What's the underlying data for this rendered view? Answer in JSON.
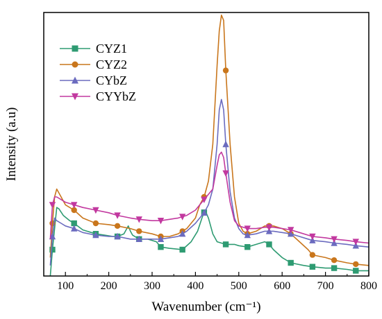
{
  "chart_data": {
    "type": "line",
    "title": "",
    "xlabel": "Wavenumber (cm⁻¹)",
    "ylabel": "Intensity (a.u)",
    "xlim": [
      50,
      800
    ],
    "ylim": [
      0,
      1
    ],
    "x_ticks": [
      100,
      200,
      300,
      400,
      500,
      600,
      700,
      800
    ],
    "y_ticks_shown": false,
    "grid": false,
    "legend_position": "top-left",
    "series": [
      {
        "name": "CYZ1",
        "color": "#2e9b72",
        "marker": "square",
        "x": [
          65,
          70,
          75,
          80,
          85,
          95,
          110,
          120,
          140,
          160,
          170,
          190,
          210,
          220,
          235,
          245,
          250,
          255,
          270,
          290,
          310,
          320,
          340,
          370,
          390,
          405,
          415,
          422,
          430,
          440,
          450,
          470,
          490,
          500,
          520,
          540,
          560,
          570,
          580,
          600,
          620,
          650,
          670,
          700,
          720,
          750,
          770,
          800
        ],
        "y": [
          0.0,
          0.1,
          0.18,
          0.26,
          0.255,
          0.23,
          0.21,
          0.2,
          0.175,
          0.165,
          0.16,
          0.155,
          0.15,
          0.15,
          0.16,
          0.19,
          0.17,
          0.155,
          0.14,
          0.14,
          0.13,
          0.11,
          0.105,
          0.1,
          0.13,
          0.17,
          0.22,
          0.25,
          0.22,
          0.16,
          0.13,
          0.12,
          0.12,
          0.115,
          0.11,
          0.12,
          0.13,
          0.12,
          0.1,
          0.07,
          0.05,
          0.04,
          0.035,
          0.03,
          0.03,
          0.025,
          0.02,
          0.02
        ]
      },
      {
        "name": "CYZ2",
        "color": "#c9761c",
        "marker": "circle",
        "x": [
          65,
          70,
          75,
          80,
          90,
          100,
          120,
          140,
          170,
          200,
          220,
          250,
          270,
          300,
          320,
          340,
          360,
          380,
          400,
          410,
          420,
          430,
          440,
          450,
          455,
          460,
          465,
          470,
          480,
          490,
          500,
          510,
          520,
          540,
          560,
          580,
          600,
          620,
          640,
          660,
          670,
          700,
          720,
          750,
          770,
          800
        ],
        "y": [
          0.07,
          0.2,
          0.3,
          0.33,
          0.3,
          0.27,
          0.25,
          0.22,
          0.2,
          0.195,
          0.19,
          0.18,
          0.17,
          0.16,
          0.15,
          0.15,
          0.16,
          0.18,
          0.22,
          0.27,
          0.3,
          0.36,
          0.5,
          0.8,
          0.93,
          0.99,
          0.97,
          0.78,
          0.5,
          0.3,
          0.2,
          0.17,
          0.16,
          0.17,
          0.19,
          0.19,
          0.18,
          0.16,
          0.13,
          0.1,
          0.08,
          0.07,
          0.06,
          0.05,
          0.045,
          0.04
        ]
      },
      {
        "name": "CYbZ",
        "color": "#6b6bbf",
        "marker": "triangle-up",
        "x": [
          65,
          70,
          75,
          80,
          90,
          100,
          120,
          140,
          170,
          200,
          220,
          250,
          270,
          300,
          320,
          340,
          360,
          380,
          400,
          410,
          420,
          430,
          440,
          450,
          455,
          460,
          465,
          470,
          480,
          490,
          500,
          510,
          520,
          540,
          560,
          580,
          600,
          620,
          640,
          660,
          670,
          700,
          720,
          750,
          770,
          800
        ],
        "y": [
          0.04,
          0.15,
          0.22,
          0.21,
          0.2,
          0.19,
          0.18,
          0.165,
          0.155,
          0.15,
          0.15,
          0.14,
          0.14,
          0.14,
          0.14,
          0.145,
          0.15,
          0.17,
          0.2,
          0.22,
          0.24,
          0.27,
          0.33,
          0.5,
          0.63,
          0.67,
          0.63,
          0.5,
          0.32,
          0.22,
          0.18,
          0.16,
          0.155,
          0.16,
          0.17,
          0.17,
          0.165,
          0.16,
          0.15,
          0.14,
          0.135,
          0.13,
          0.125,
          0.12,
          0.115,
          0.11
        ]
      },
      {
        "name": "CYYbZ",
        "color": "#c2389f",
        "marker": "triangle-down",
        "x": [
          65,
          70,
          75,
          80,
          90,
          100,
          120,
          140,
          170,
          200,
          220,
          250,
          270,
          300,
          320,
          340,
          360,
          380,
          400,
          410,
          420,
          430,
          440,
          450,
          455,
          460,
          465,
          470,
          480,
          490,
          500,
          510,
          520,
          540,
          560,
          580,
          600,
          620,
          640,
          660,
          670,
          700,
          720,
          750,
          770,
          800
        ],
        "y": [
          0.14,
          0.27,
          0.3,
          0.3,
          0.29,
          0.28,
          0.27,
          0.26,
          0.25,
          0.24,
          0.23,
          0.22,
          0.215,
          0.21,
          0.21,
          0.215,
          0.22,
          0.23,
          0.25,
          0.27,
          0.29,
          0.31,
          0.33,
          0.42,
          0.46,
          0.47,
          0.45,
          0.39,
          0.28,
          0.21,
          0.19,
          0.185,
          0.18,
          0.18,
          0.185,
          0.185,
          0.18,
          0.175,
          0.165,
          0.155,
          0.15,
          0.145,
          0.14,
          0.135,
          0.13,
          0.125
        ]
      }
    ],
    "markers_at_x": [
      70,
      120,
      170,
      220,
      270,
      320,
      370,
      420,
      470,
      520,
      570,
      620,
      670,
      720,
      770
    ]
  }
}
